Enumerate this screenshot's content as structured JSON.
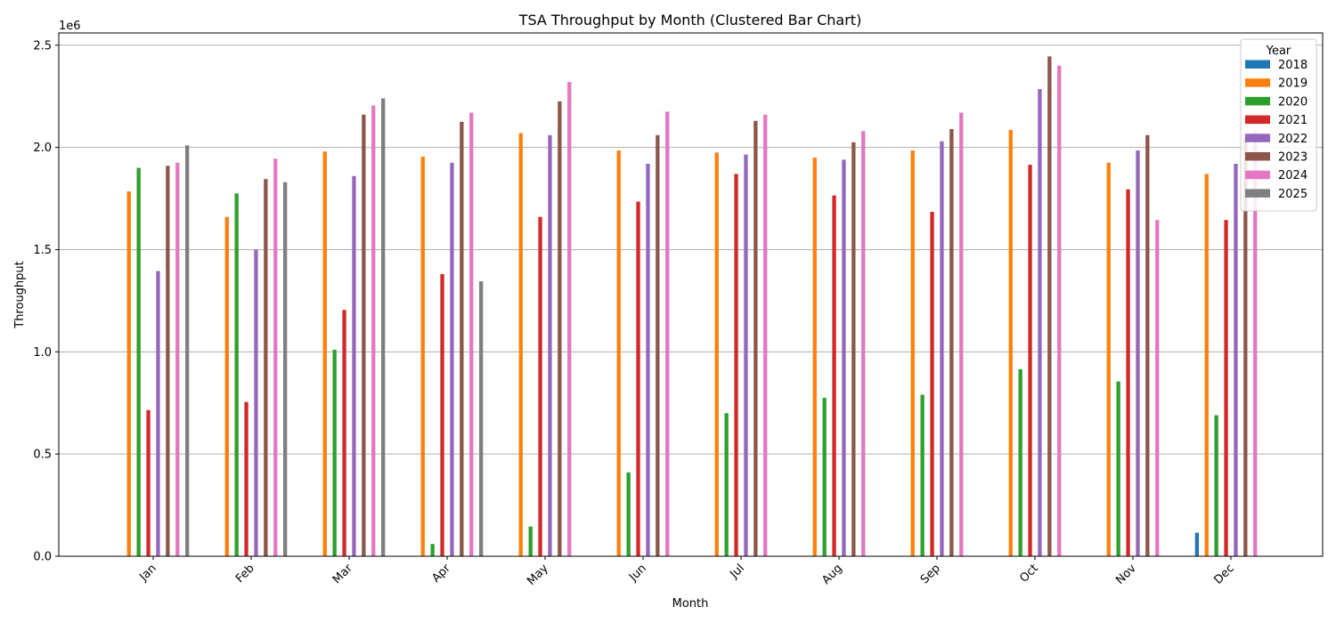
{
  "chart_data": {
    "type": "bar",
    "title": "TSA Throughput by Month (Clustered Bar Chart)",
    "xlabel": "Month",
    "ylabel": "Throughput",
    "y_scale_note": "1e6",
    "ylim": [
      0,
      2560000
    ],
    "yticks": [
      0,
      500000,
      1000000,
      1500000,
      2000000,
      2500000
    ],
    "ytick_labels": [
      "0.0",
      "0.5",
      "1.0",
      "1.5",
      "2.0",
      "2.5"
    ],
    "grid": "horizontal",
    "legend": {
      "title": "Year",
      "placement": "top-right"
    },
    "categories": [
      "Jan",
      "Feb",
      "Mar",
      "Apr",
      "May",
      "Jun",
      "Jul",
      "Aug",
      "Sep",
      "Oct",
      "Nov",
      "Dec"
    ],
    "series": [
      {
        "name": "2018",
        "color": "#1f77b4",
        "values": [
          null,
          null,
          null,
          null,
          null,
          null,
          null,
          null,
          null,
          null,
          null,
          115000
        ]
      },
      {
        "name": "2019",
        "color": "#ff7f0e",
        "values": [
          1785000,
          1660000,
          1980000,
          1955000,
          2070000,
          1985000,
          1975000,
          1950000,
          1985000,
          2085000,
          1925000,
          1870000
        ]
      },
      {
        "name": "2020",
        "color": "#2ca02c",
        "values": [
          1900000,
          1775000,
          1010000,
          60000,
          145000,
          410000,
          700000,
          775000,
          790000,
          915000,
          855000,
          690000
        ]
      },
      {
        "name": "2021",
        "color": "#d62728",
        "values": [
          715000,
          755000,
          1205000,
          1380000,
          1660000,
          1735000,
          1870000,
          1765000,
          1685000,
          1915000,
          1795000,
          1645000
        ]
      },
      {
        "name": "2022",
        "color": "#9467bd",
        "values": [
          1395000,
          1500000,
          1860000,
          1925000,
          2060000,
          1920000,
          1965000,
          1940000,
          2030000,
          2285000,
          1985000,
          1920000
        ]
      },
      {
        "name": "2023",
        "color": "#8c564b",
        "values": [
          1910000,
          1845000,
          2160000,
          2125000,
          2225000,
          2060000,
          2130000,
          2025000,
          2090000,
          2445000,
          2060000,
          2050000
        ]
      },
      {
        "name": "2024",
        "color": "#e377c2",
        "values": [
          1925000,
          1945000,
          2205000,
          2170000,
          2320000,
          2175000,
          2160000,
          2080000,
          2170000,
          2400000,
          1645000,
          2080000
        ]
      },
      {
        "name": "2025",
        "color": "#7f7f7f",
        "values": [
          2010000,
          1830000,
          2240000,
          1345000,
          null,
          null,
          null,
          null,
          null,
          null,
          null,
          null
        ]
      }
    ]
  }
}
